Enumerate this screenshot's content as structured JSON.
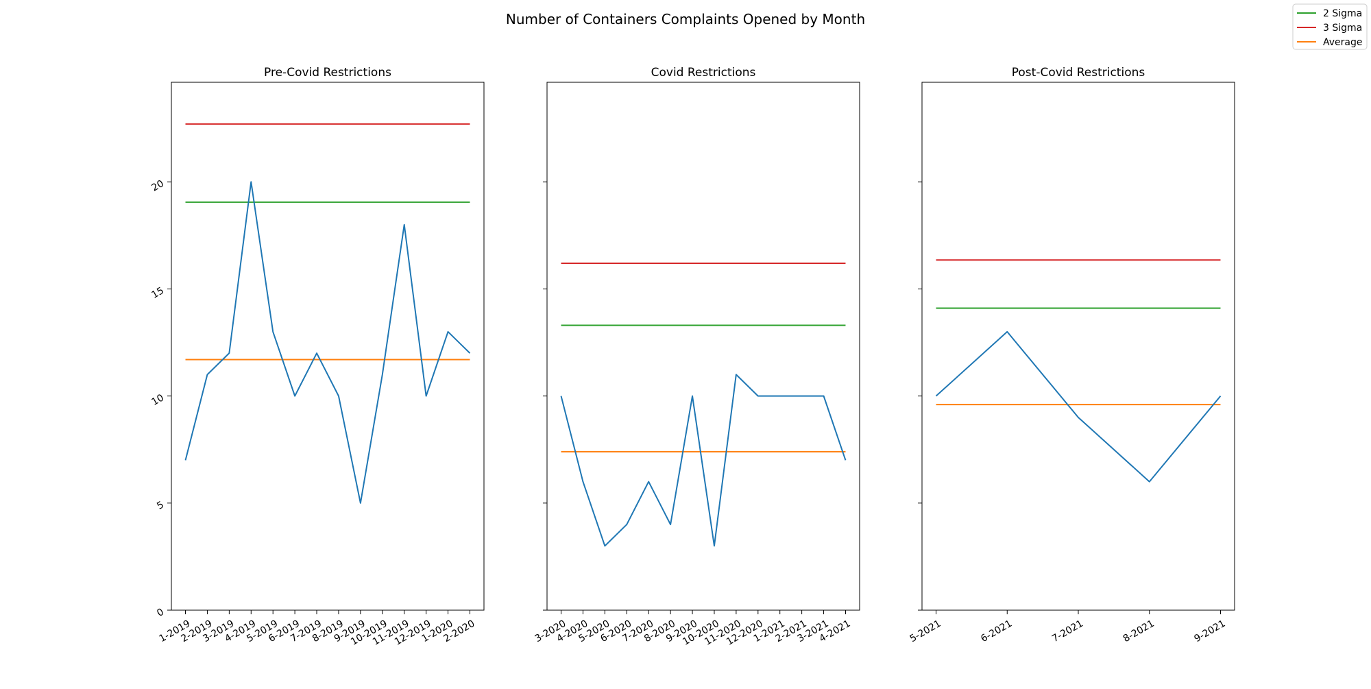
{
  "chart_data": {
    "type": "line",
    "title": "Number of Containers Complaints Opened by Month",
    "legend": {
      "placement": "top-right",
      "entries": [
        {
          "label": "2 Sigma",
          "color": "#2ca02c"
        },
        {
          "label": "3 Sigma",
          "color": "#d62728"
        },
        {
          "label": "Average",
          "color": "#ff7f0e"
        }
      ]
    },
    "shared_y": {
      "ylim": [
        0,
        24.65
      ],
      "yticks": [
        0,
        5,
        10,
        15,
        20
      ]
    },
    "colors": {
      "data": "#1f77b4",
      "sigma2": "#2ca02c",
      "sigma3": "#d62728",
      "average": "#ff7f0e"
    },
    "panels": [
      {
        "title": "Pre-Covid Restrictions",
        "categories": [
          "1-2019",
          "2-2019",
          "3-2019",
          "4-2019",
          "5-2019",
          "6-2019",
          "7-2019",
          "8-2019",
          "9-2019",
          "10-2019",
          "11-2019",
          "12-2019",
          "1-2020",
          "2-2020"
        ],
        "values": [
          7,
          11,
          12,
          20,
          13,
          10,
          12,
          10,
          5,
          11,
          18,
          10,
          13,
          12
        ],
        "average": 11.7,
        "sigma2": 19.05,
        "sigma3": 22.7,
        "show_ytick_labels": true
      },
      {
        "title": "Covid Restrictions",
        "categories": [
          "3-2020",
          "4-2020",
          "5-2020",
          "6-2020",
          "7-2020",
          "8-2020",
          "9-2020",
          "10-2020",
          "11-2020",
          "12-2020",
          "1-2021",
          "2-2021",
          "3-2021",
          "4-2021"
        ],
        "values": [
          10,
          6,
          3,
          4,
          6,
          4,
          10,
          3,
          11,
          10,
          10,
          10,
          10,
          7
        ],
        "average": 7.4,
        "sigma2": 13.3,
        "sigma3": 16.2,
        "show_ytick_labels": false
      },
      {
        "title": "Post-Covid Restrictions",
        "categories": [
          "5-2021",
          "6-2021",
          "7-2021",
          "8-2021",
          "9-2021"
        ],
        "values": [
          10,
          13,
          9,
          6,
          10
        ],
        "average": 9.6,
        "sigma2": 14.1,
        "sigma3": 16.35,
        "show_ytick_labels": false
      }
    ]
  }
}
